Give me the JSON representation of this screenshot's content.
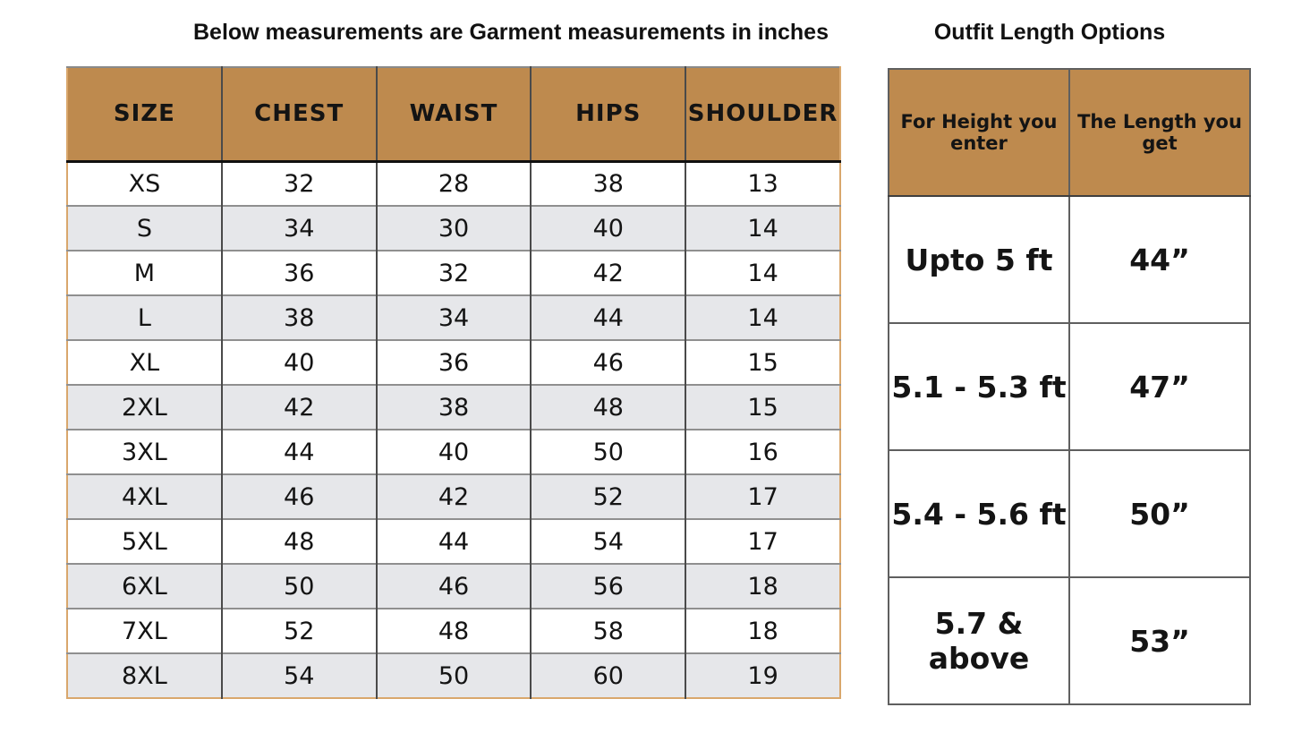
{
  "colors": {
    "header_bg": "#BE8A4E",
    "row_alt_bg": "#E6E7EA",
    "row_bg": "#FFFFFF",
    "left_table_outer_border": "#D9A76C",
    "grid_border": "#5F5F5F",
    "header_separator": "#101010",
    "text": "#141414"
  },
  "left_table": {
    "title": "Below measurements are Garment measurements in inches",
    "columns": [
      "SIZE",
      "CHEST",
      "WAIST",
      "HIPS",
      "SHOULDER"
    ],
    "rows": [
      [
        "XS",
        "32",
        "28",
        "38",
        "13"
      ],
      [
        "S",
        "34",
        "30",
        "40",
        "14"
      ],
      [
        "M",
        "36",
        "32",
        "42",
        "14"
      ],
      [
        "L",
        "38",
        "34",
        "44",
        "14"
      ],
      [
        "XL",
        "40",
        "36",
        "46",
        "15"
      ],
      [
        "2XL",
        "42",
        "38",
        "48",
        "15"
      ],
      [
        "3XL",
        "44",
        "40",
        "50",
        "16"
      ],
      [
        "4XL",
        "46",
        "42",
        "52",
        "17"
      ],
      [
        "5XL",
        "48",
        "44",
        "54",
        "17"
      ],
      [
        "6XL",
        "50",
        "46",
        "56",
        "18"
      ],
      [
        "7XL",
        "52",
        "48",
        "58",
        "18"
      ],
      [
        "8XL",
        "54",
        "50",
        "60",
        "19"
      ]
    ]
  },
  "right_table": {
    "title": "Outfit Length Options",
    "columns": [
      "For Height you enter",
      "The Length you get"
    ],
    "rows": [
      [
        "Upto 5 ft",
        "44”"
      ],
      [
        "5.1 - 5.3 ft",
        "47”"
      ],
      [
        "5.4 - 5.6 ft",
        "50”"
      ],
      [
        "5.7 & above",
        "53”"
      ]
    ]
  },
  "chart_data": [
    {
      "type": "table",
      "title": "Below measurements are Garment measurements in inches",
      "columns": [
        "SIZE",
        "CHEST",
        "WAIST",
        "HIPS",
        "SHOULDER"
      ],
      "rows": [
        [
          "XS",
          32,
          28,
          38,
          13
        ],
        [
          "S",
          34,
          30,
          40,
          14
        ],
        [
          "M",
          36,
          32,
          42,
          14
        ],
        [
          "L",
          38,
          34,
          44,
          14
        ],
        [
          "XL",
          40,
          36,
          46,
          15
        ],
        [
          "2XL",
          42,
          38,
          48,
          15
        ],
        [
          "3XL",
          44,
          40,
          50,
          16
        ],
        [
          "4XL",
          46,
          42,
          52,
          17
        ],
        [
          "5XL",
          48,
          44,
          54,
          17
        ],
        [
          "6XL",
          50,
          46,
          56,
          18
        ],
        [
          "7XL",
          52,
          48,
          58,
          18
        ],
        [
          "8XL",
          54,
          50,
          60,
          19
        ]
      ],
      "units": "inches"
    },
    {
      "type": "table",
      "title": "Outfit Length Options",
      "columns": [
        "For Height you enter",
        "The Length you get"
      ],
      "rows": [
        [
          "Upto 5 ft",
          "44”"
        ],
        [
          "5.1 - 5.3 ft",
          "47”"
        ],
        [
          "5.4 - 5.6 ft",
          "50”"
        ],
        [
          "5.7 & above",
          "53”"
        ]
      ]
    }
  ]
}
